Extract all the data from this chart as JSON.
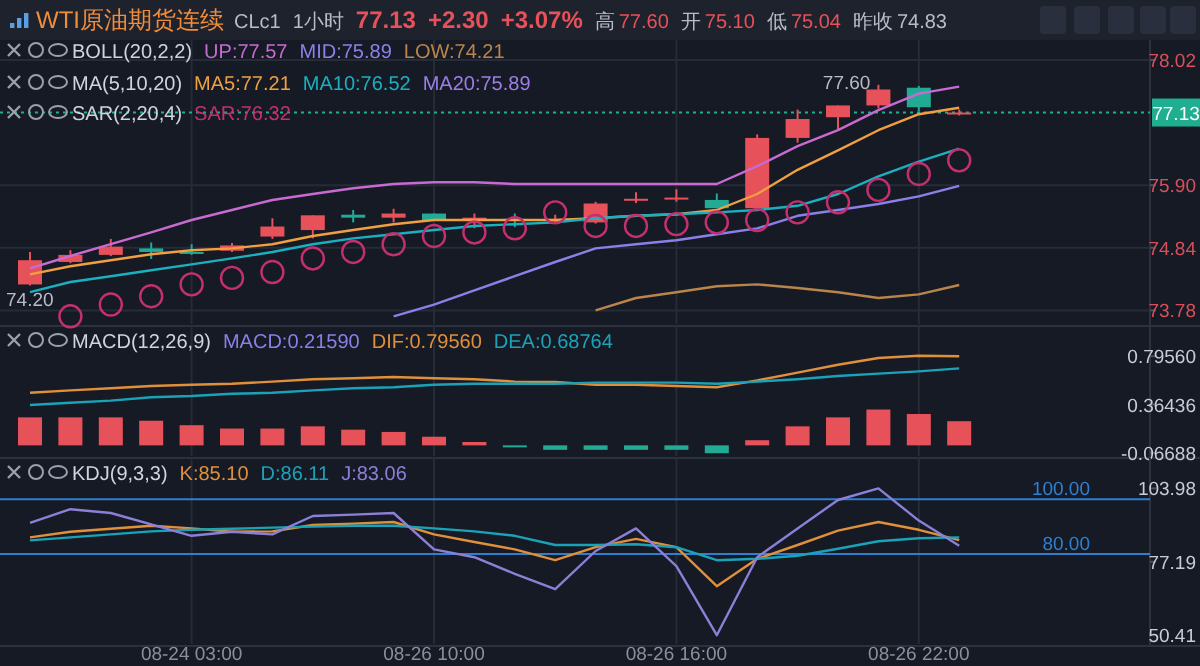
{
  "chart_data": [
    {
      "type": "candlestick",
      "title": "WTI原油期货连续",
      "legend": "top",
      "grid": true,
      "tick_labels": "y",
      "annotations": [
        "CLc1",
        "1小时",
        "77.13",
        "+2.30",
        "+3.07%",
        "高",
        "77.60",
        "开",
        "75.10",
        "低",
        "75.04",
        "昨收",
        "74.83",
        "BOLL(20,2,2)",
        "MA(5,10,20)",
        "MA20:75.89",
        "SAR(2,20,4)",
        "74.20",
        "77.60"
      ],
      "categories": [
        null,
        null,
        null,
        null,
        null,
        null,
        null,
        null,
        null,
        null,
        null,
        null,
        null,
        null,
        null,
        null,
        null,
        null,
        null,
        null,
        null,
        null,
        null,
        null
      ],
      "ylim": [
        73.55,
        78.29
      ],
      "yticks": [
        78.02,
        {
          "value": 75.9,
          "label": "75.90"
        },
        74.84,
        73.78
      ],
      "ref_lines": [
        {
          "axis": "y",
          "value": 77.13,
          "label": "77.13",
          "color": "#1fae8f",
          "line_style": "dotted"
        }
      ],
      "ohlc": [
        [
          74.22,
          74.77,
          74.2,
          74.63
        ],
        [
          74.6,
          74.8,
          74.58,
          74.72
        ],
        [
          74.72,
          74.99,
          74.7,
          74.86
        ],
        [
          74.83,
          74.93,
          74.65,
          74.77
        ],
        [
          74.77,
          74.9,
          74.72,
          74.76
        ],
        [
          74.79,
          74.92,
          74.77,
          74.88
        ],
        [
          75.03,
          75.34,
          74.99,
          75.2
        ],
        [
          75.14,
          75.39,
          75.0,
          75.39
        ],
        [
          75.4,
          75.48,
          75.27,
          75.35
        ],
        [
          75.35,
          75.5,
          75.27,
          75.42
        ],
        [
          75.42,
          75.42,
          75.31,
          75.31
        ],
        [
          75.34,
          75.42,
          75.17,
          75.35
        ],
        [
          75.33,
          75.42,
          75.19,
          75.31
        ],
        [
          75.31,
          75.4,
          75.25,
          75.33
        ],
        [
          75.27,
          75.62,
          75.25,
          75.59
        ],
        [
          75.66,
          75.78,
          75.6,
          75.67
        ],
        [
          75.68,
          75.83,
          75.62,
          75.69
        ],
        [
          75.65,
          75.76,
          75.51,
          75.51
        ],
        [
          75.51,
          76.76,
          75.51,
          76.7
        ],
        [
          76.7,
          77.18,
          76.62,
          77.02
        ],
        [
          77.05,
          77.25,
          76.85,
          77.25
        ],
        [
          77.25,
          77.6,
          77.2,
          77.52
        ],
        [
          77.55,
          77.58,
          77.15,
          77.22
        ],
        [
          77.12,
          77.18,
          77.08,
          77.13
        ]
      ],
      "series": [
        {
          "type": "line",
          "name": "UP:77.57",
          "color": "#c86bd0",
          "values": [
            74.49,
            74.7,
            74.9,
            75.1,
            75.31,
            75.48,
            75.65,
            75.75,
            75.85,
            75.92,
            75.95,
            75.95,
            75.92,
            75.92,
            75.92,
            75.92,
            75.92,
            75.92,
            76.22,
            76.56,
            76.83,
            77.17,
            77.45,
            77.57
          ]
        },
        {
          "type": "line",
          "name": "MID:75.89",
          "color": "#8a80e8",
          "values": [
            null,
            null,
            null,
            null,
            null,
            null,
            null,
            null,
            null,
            73.68,
            73.88,
            74.12,
            74.36,
            74.6,
            74.83,
            74.9,
            74.97,
            75.07,
            75.17,
            75.38,
            75.48,
            75.58,
            75.71,
            75.89
          ]
        },
        {
          "type": "line",
          "name": "LOW:74.21",
          "color": "#b9854a",
          "values": [
            null,
            null,
            null,
            null,
            null,
            null,
            null,
            null,
            null,
            null,
            null,
            null,
            null,
            null,
            73.78,
            73.99,
            74.09,
            74.19,
            74.22,
            74.16,
            74.09,
            73.99,
            74.05,
            74.21
          ]
        },
        {
          "type": "line",
          "name": "MA5:77.21",
          "color": "#f0a040",
          "values": [
            74.39,
            74.53,
            74.63,
            74.73,
            74.8,
            74.83,
            74.9,
            75.04,
            75.14,
            75.24,
            75.31,
            75.31,
            75.31,
            75.31,
            75.34,
            75.38,
            75.41,
            75.48,
            75.75,
            76.16,
            76.49,
            76.83,
            77.1,
            77.21
          ]
        },
        {
          "type": "line",
          "name": "MA10:76.52",
          "color": "#1ab0c0",
          "values": [
            74.09,
            74.26,
            74.36,
            74.46,
            74.56,
            74.66,
            74.77,
            74.9,
            75.0,
            75.07,
            75.14,
            75.21,
            75.24,
            75.27,
            75.34,
            75.38,
            75.41,
            75.44,
            75.48,
            75.55,
            75.75,
            76.05,
            76.3,
            76.52
          ]
        },
        {
          "type": "scatter",
          "marker": "circle",
          "name": "SAR:76.32",
          "color": "#c4306e",
          "values": [
            null,
            73.68,
            73.88,
            74.02,
            74.22,
            74.33,
            74.43,
            74.66,
            74.77,
            74.9,
            75.04,
            75.1,
            75.17,
            75.44,
            75.21,
            75.21,
            75.24,
            75.27,
            75.31,
            75.44,
            75.61,
            75.82,
            76.09,
            76.32
          ]
        }
      ]
    },
    {
      "type": "bar",
      "legend": "top left",
      "grid": "x",
      "tick_labels": "y",
      "annotations": [
        "MACD(12,26,9)",
        "MACD:0.21590"
      ],
      "categories": [
        null,
        null,
        null,
        null,
        null,
        null,
        null,
        null,
        null,
        null,
        null,
        null,
        null,
        null,
        null,
        null,
        null,
        null,
        null,
        null,
        null,
        null,
        null,
        null
      ],
      "ylim": [
        -0.095,
        1.03
      ],
      "yticks": [
        {
          "value": 0.7956,
          "label": "0.79560"
        },
        0.36436,
        {
          "value": -0.06688,
          "label": "-0.06688"
        }
      ],
      "series": [
        {
          "type": "bar",
          "colors": [
            "#e6515a",
            "#e6515a",
            "#e6515a",
            "#e6515a",
            "#e6515a",
            "#e6515a",
            "#e6515a",
            "#e6515a",
            "#e6515a",
            "#e6515a",
            "#e6515a",
            "#e6515a",
            "#22ab94",
            "#22ab94",
            "#22ab94",
            "#22ab94",
            "#22ab94",
            "#22ab94",
            "#e6515a",
            "#e6515a",
            "#e6515a",
            "#e6515a",
            "#e6515a",
            "#e6515a"
          ],
          "values": [
            0.25,
            0.25,
            0.25,
            0.22,
            0.18,
            0.15,
            0.15,
            0.17,
            0.14,
            0.12,
            0.077,
            0.03,
            -0.015,
            -0.04,
            -0.04,
            -0.04,
            -0.04,
            -0.07,
            0.046,
            0.17,
            0.25,
            0.32,
            0.28,
            0.2159
          ]
        },
        {
          "type": "line",
          "name": "DIF:0.79560",
          "color": "#e0903a",
          "values": [
            0.47,
            0.49,
            0.51,
            0.53,
            0.54,
            0.55,
            0.57,
            0.59,
            0.6,
            0.61,
            0.6,
            0.59,
            0.57,
            0.565,
            0.54,
            0.54,
            0.53,
            0.52,
            0.58,
            0.65,
            0.72,
            0.78,
            0.8,
            0.7956
          ]
        },
        {
          "type": "line",
          "name": "DEA:0.68764",
          "color": "#1aa3b8",
          "values": [
            0.36,
            0.38,
            0.4,
            0.43,
            0.44,
            0.46,
            0.47,
            0.49,
            0.51,
            0.52,
            0.54,
            0.55,
            0.55,
            0.55,
            0.56,
            0.56,
            0.56,
            0.55,
            0.57,
            0.59,
            0.62,
            0.64,
            0.66,
            0.68764
          ]
        }
      ]
    },
    {
      "type": "line",
      "legend": "top",
      "grid": "x",
      "annotations": [
        "KDJ(9,3,3)"
      ],
      "categories": [
        null,
        null,
        null,
        null,
        "08-24 03:00",
        null,
        null,
        null,
        null,
        null,
        "08-26 10:00",
        null,
        null,
        null,
        null,
        null,
        "08-26 16:00",
        null,
        null,
        null,
        null,
        null,
        "08-26 22:00",
        null
      ],
      "ylim": [
        47.2,
        113.6
      ],
      "yticks": [
        103.98,
        77.19,
        50.41
      ],
      "ref_lines": [
        {
          "axis": "y",
          "value": 100,
          "label": "100.00",
          "color": "#2f7fd0"
        },
        {
          "axis": "y",
          "value": 80,
          "label": "80.00",
          "color": "#2f7fd0"
        }
      ],
      "series": [
        {
          "name": "K:85.10",
          "color": "#e0903a",
          "values": [
            86.1,
            88.1,
            89.2,
            90.3,
            89.4,
            88.1,
            88.3,
            90.6,
            91.1,
            91.7,
            87.2,
            84.4,
            81.7,
            77.8,
            82.5,
            85.6,
            82.5,
            68.3,
            78.3,
            83.3,
            88.6,
            91.7,
            88.9,
            85.1
          ]
        },
        {
          "name": "D:86.11",
          "color": "#1aa3b8",
          "values": [
            85.0,
            86.1,
            87.2,
            88.3,
            88.9,
            89.2,
            89.7,
            90.0,
            90.3,
            90.3,
            89.4,
            88.3,
            86.7,
            83.3,
            83.3,
            83.6,
            82.5,
            77.8,
            78.3,
            79.4,
            81.9,
            84.7,
            85.8,
            86.11
          ]
        },
        {
          "name": "J:83.06",
          "color": "#8c7fd8",
          "values": [
            91.4,
            96.4,
            95.0,
            90.8,
            86.7,
            88.1,
            87.2,
            93.9,
            94.4,
            95.0,
            81.7,
            78.9,
            72.8,
            67.2,
            81.1,
            89.4,
            75.6,
            50.41,
            78.9,
            89.4,
            99.7,
            103.98,
            92.2,
            83.06
          ]
        }
      ]
    }
  ]
}
